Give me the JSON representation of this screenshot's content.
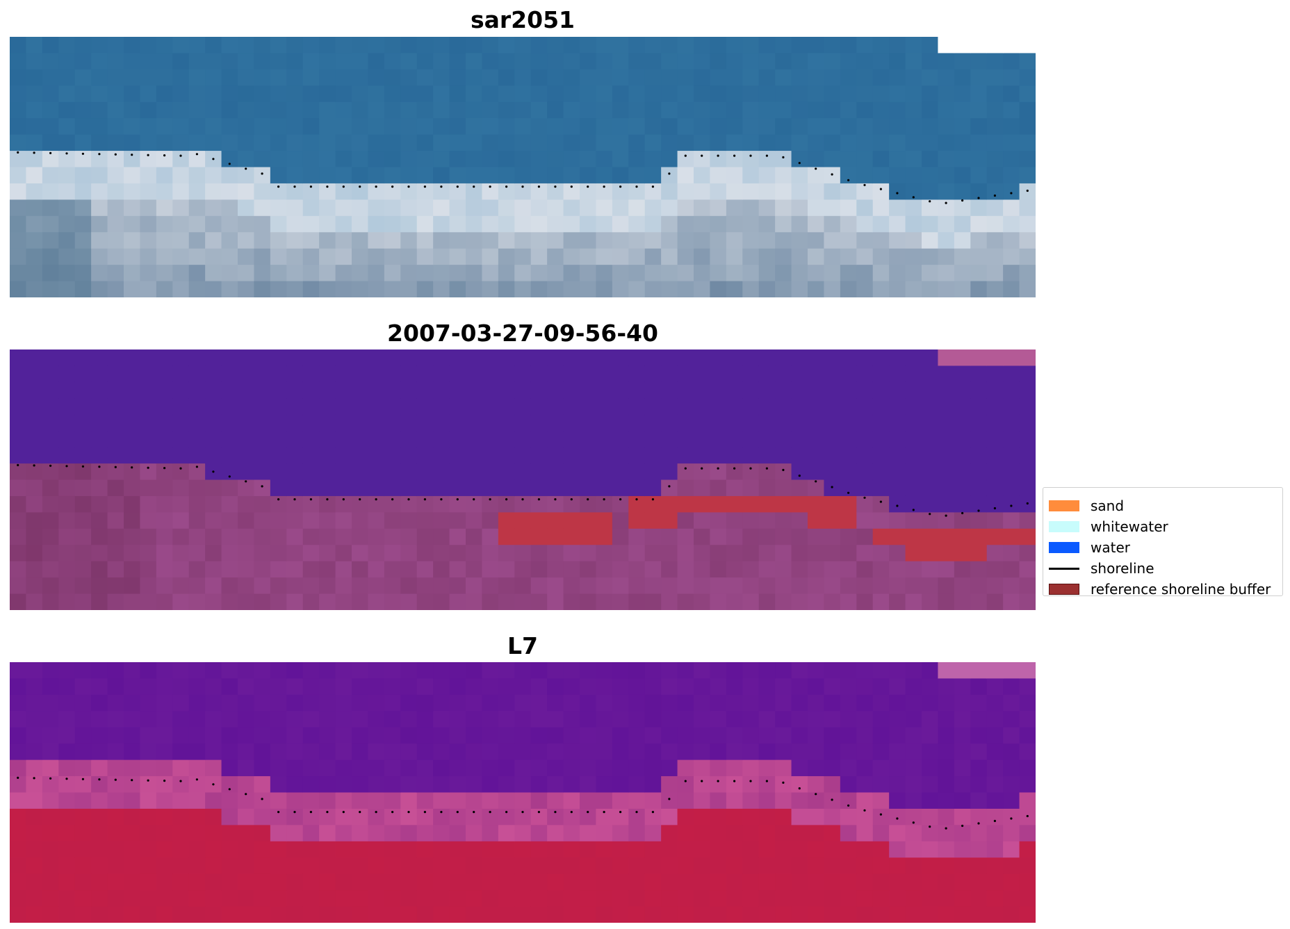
{
  "panels": [
    {
      "title": "sar2051",
      "scheme": "rgb"
    },
    {
      "title": "2007-03-27-09-56-40",
      "scheme": "classified"
    },
    {
      "title": "L7",
      "scheme": "index"
    }
  ],
  "legend": {
    "items": [
      {
        "label": "sand",
        "color": "#ff8c3c",
        "kind": "patch"
      },
      {
        "label": "whitewater",
        "color": "#c8fcfc",
        "kind": "patch"
      },
      {
        "label": "water",
        "color": "#0a5aff",
        "kind": "patch"
      },
      {
        "label": "shoreline",
        "color": "#000000",
        "kind": "line"
      },
      {
        "label": "reference shoreline buffer",
        "color": "#9b3030",
        "kind": "patch"
      }
    ]
  },
  "colors": {
    "rgb_water": "#2a6a9a",
    "rgb_sand": "#dfe3ea",
    "class_water": "#52229a",
    "class_land": "#9a4a8a",
    "class_buffer": "#be3646",
    "index_water": "#6a1a9a",
    "index_land": "#c01e48"
  }
}
